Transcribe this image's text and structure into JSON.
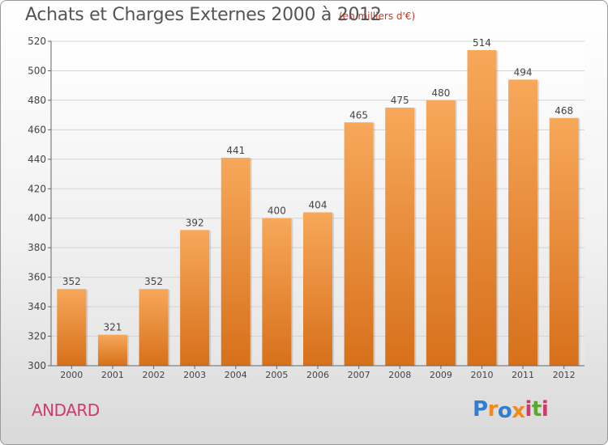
{
  "title": "Achats et Charges Externes 2000 à 2012",
  "unit_label": "(en milliers d'€)",
  "commune": "ANDARD",
  "logo": {
    "text": "Proxiti",
    "letters": [
      "P",
      "r",
      "o",
      "x",
      "i",
      "t",
      "i"
    ],
    "colors": [
      "#2e7fd1",
      "#f08a1c",
      "#2e7fd1",
      "#f08a1c",
      "#d0396a",
      "#5aa82e",
      "#d0396a"
    ]
  },
  "colors": {
    "bar_top": "#f7a85a",
    "bar_bottom": "#d7701a",
    "title": "#555555",
    "commune": "#d0396a",
    "unit": "#c0392b"
  },
  "chart_data": {
    "type": "bar",
    "title": "Achats et Charges Externes 2000 à 2012",
    "categories": [
      "2000",
      "2001",
      "2002",
      "2003",
      "2004",
      "2005",
      "2006",
      "2007",
      "2008",
      "2009",
      "2010",
      "2011",
      "2012"
    ],
    "values": [
      352,
      321,
      352,
      392,
      441,
      400,
      404,
      465,
      475,
      480,
      514,
      494,
      468
    ],
    "ylim": [
      300,
      520
    ],
    "yticks": [
      300,
      320,
      340,
      360,
      380,
      400,
      420,
      440,
      460,
      480,
      500,
      520
    ],
    "grid": true,
    "data_labels": true
  }
}
